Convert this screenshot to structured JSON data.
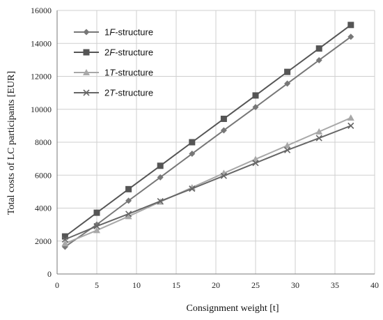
{
  "chart_data": {
    "type": "line",
    "xlabel": "Consignment weight [t]",
    "ylabel": "Total costs of LC participants [EUR]",
    "xlim": [
      0,
      40
    ],
    "ylim": [
      0,
      16000
    ],
    "xticks": [
      0,
      5,
      10,
      15,
      20,
      25,
      30,
      35,
      40
    ],
    "yticks": [
      0,
      2000,
      4000,
      6000,
      8000,
      10000,
      12000,
      14000,
      16000
    ],
    "grid": true,
    "legend_position": "top-left",
    "x": [
      1,
      5,
      9,
      13,
      17,
      21,
      25,
      29,
      33,
      37
    ],
    "series": [
      {
        "name_pre": "1",
        "name_it": "F",
        "name_post": "-structure",
        "marker": "diamond",
        "color": "#777777",
        "values": [
          1650,
          3000,
          4450,
          5870,
          7300,
          8720,
          10130,
          11560,
          12980,
          14400
        ]
      },
      {
        "name_pre": "2",
        "name_it": "F",
        "name_post": "-structure",
        "marker": "square",
        "color": "#555555",
        "values": [
          2280,
          3720,
          5150,
          6570,
          8000,
          9420,
          10840,
          12270,
          13690,
          15120
        ]
      },
      {
        "name_pre": "1",
        "name_it": "T",
        "name_post": "-structure",
        "marker": "triangle",
        "color": "#a8a8a8",
        "values": [
          1850,
          2650,
          3500,
          4380,
          5250,
          6120,
          6970,
          7800,
          8640,
          9480
        ]
      },
      {
        "name_pre": "2",
        "name_it": "T",
        "name_post": "-structure",
        "marker": "x",
        "color": "#666666",
        "values": [
          2100,
          2900,
          3650,
          4420,
          5180,
          5960,
          6740,
          7520,
          8250,
          9000
        ]
      }
    ]
  }
}
